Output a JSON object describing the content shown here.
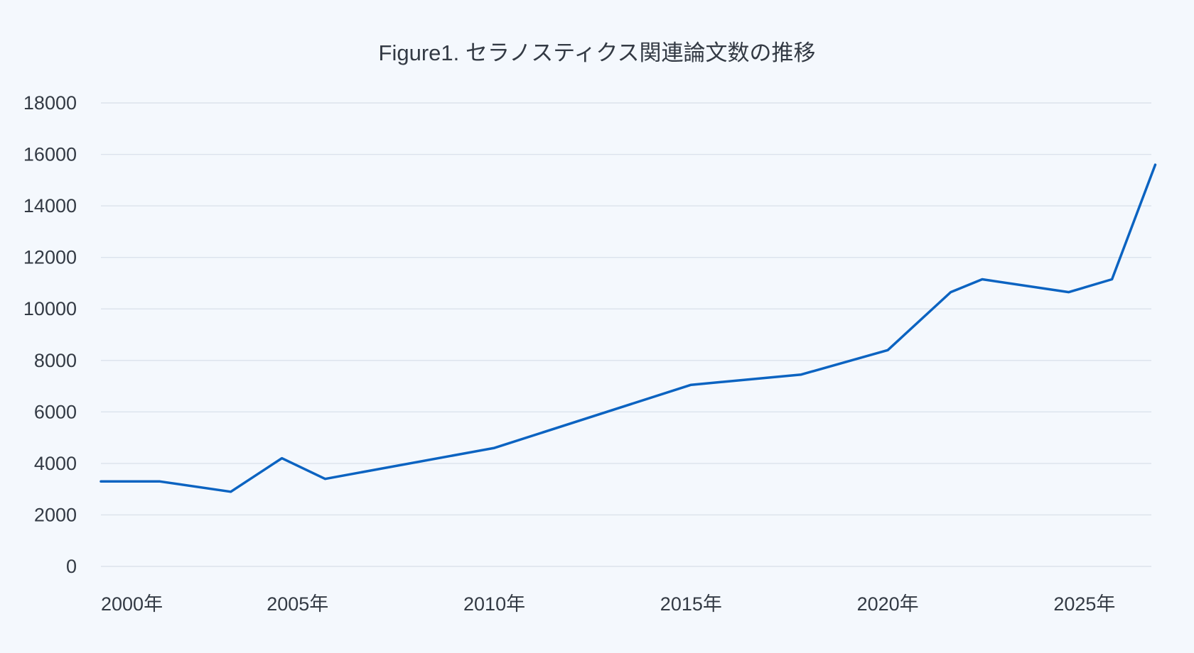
{
  "chart_data": {
    "type": "line",
    "title": "Figure1. セラノスティクス関連論文数の推移",
    "xlabel": "",
    "ylabel": "",
    "x_tick_labels": [
      {
        "year": 2000,
        "label": "2000年"
      },
      {
        "year": 2005,
        "label": "2005年"
      },
      {
        "year": 2010,
        "label": "2010年"
      },
      {
        "year": 2015,
        "label": "2015年"
      },
      {
        "year": 2020,
        "label": "2020年"
      },
      {
        "year": 2025,
        "label": "2025年"
      }
    ],
    "y_tick_labels": [
      "0",
      "2000",
      "4000",
      "6000",
      "8000",
      "10000",
      "12000",
      "14000",
      "16000",
      "18000"
    ],
    "xlim": [
      2000,
      2026.7
    ],
    "ylim": [
      0,
      18000
    ],
    "grid": true,
    "legend": "none",
    "series": [
      {
        "color": "#0b63c1",
        "points": [
          {
            "x": 2000.0,
            "y": 3300
          },
          {
            "x": 2001.5,
            "y": 3300
          },
          {
            "x": 2003.3,
            "y": 2900
          },
          {
            "x": 2004.6,
            "y": 4200
          },
          {
            "x": 2005.7,
            "y": 3400
          },
          {
            "x": 2010.0,
            "y": 4600
          },
          {
            "x": 2015.0,
            "y": 7050
          },
          {
            "x": 2017.8,
            "y": 7450
          },
          {
            "x": 2020.0,
            "y": 8400
          },
          {
            "x": 2021.6,
            "y": 10650
          },
          {
            "x": 2022.4,
            "y": 11150
          },
          {
            "x": 2024.6,
            "y": 10650
          },
          {
            "x": 2025.7,
            "y": 11150
          },
          {
            "x": 2026.8,
            "y": 15600
          }
        ]
      }
    ]
  }
}
